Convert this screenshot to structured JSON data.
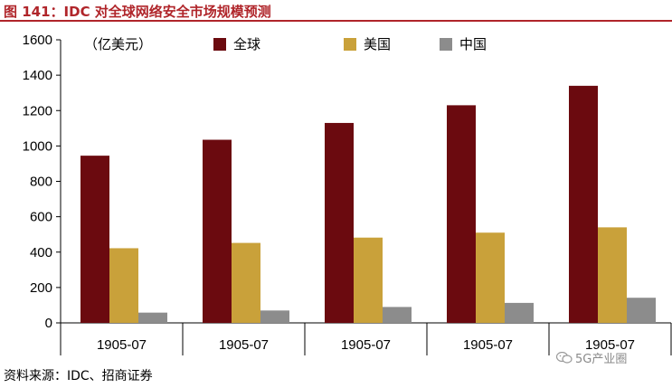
{
  "header": {
    "title": "图 141：IDC 对全球网络安全市场规模预测"
  },
  "footer": {
    "source": "资料来源：IDC、招商证券",
    "watermark": "5G产业圈"
  },
  "chart_data": {
    "type": "bar",
    "title": "",
    "unit_label": "（亿美元）",
    "xlabel": "",
    "ylabel": "",
    "categories": [
      "1905-07",
      "1905-07",
      "1905-07",
      "1905-07",
      "1905-07"
    ],
    "series": [
      {
        "name": "全球",
        "color": "#6b0a0f",
        "values": [
          945,
          1035,
          1130,
          1230,
          1340
        ]
      },
      {
        "name": "美国",
        "color": "#c9a13a",
        "values": [
          422,
          452,
          482,
          510,
          540
        ]
      },
      {
        "name": "中国",
        "color": "#8c8c8c",
        "values": [
          58,
          70,
          90,
          113,
          142
        ]
      }
    ],
    "ylim": [
      0,
      1600
    ],
    "yticks": [
      0,
      200,
      400,
      600,
      800,
      1000,
      1200,
      1400,
      1600
    ],
    "grid": false,
    "legend_position": "top"
  }
}
